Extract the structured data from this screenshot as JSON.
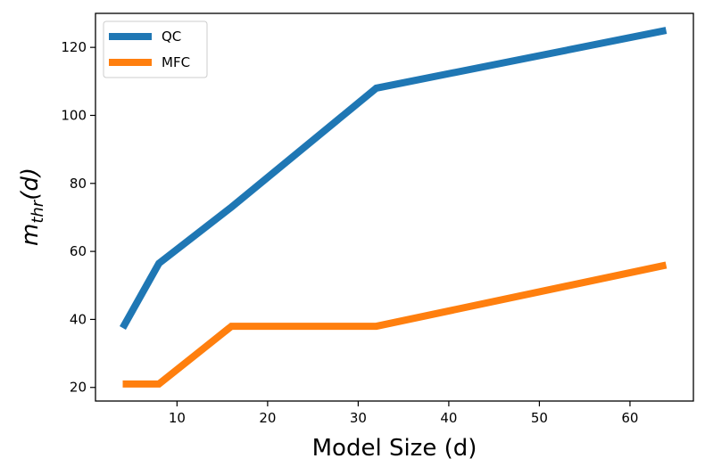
{
  "chart_data": {
    "type": "line",
    "title": "",
    "xlabel": "Model Size (d)",
    "ylabel": {
      "base": "m",
      "subscript": "thr",
      "suffix": "(d)"
    },
    "xlim": [
      1.0,
      67.0
    ],
    "ylim": [
      16.0,
      130.0
    ],
    "xticks": [
      10,
      20,
      30,
      40,
      50,
      60
    ],
    "yticks": [
      20,
      40,
      60,
      80,
      100,
      120
    ],
    "grid": false,
    "legend": {
      "position": "top-left"
    },
    "series": [
      {
        "name": "QC",
        "color": "#1f77b4",
        "x": [
          4,
          8,
          16,
          32,
          64
        ],
        "y": [
          37.5,
          56.5,
          73,
          108,
          125
        ]
      },
      {
        "name": "MFC",
        "color": "#ff7f0e",
        "x": [
          4,
          8,
          16,
          32,
          64
        ],
        "y": [
          21,
          21,
          38,
          38,
          56
        ]
      }
    ]
  }
}
